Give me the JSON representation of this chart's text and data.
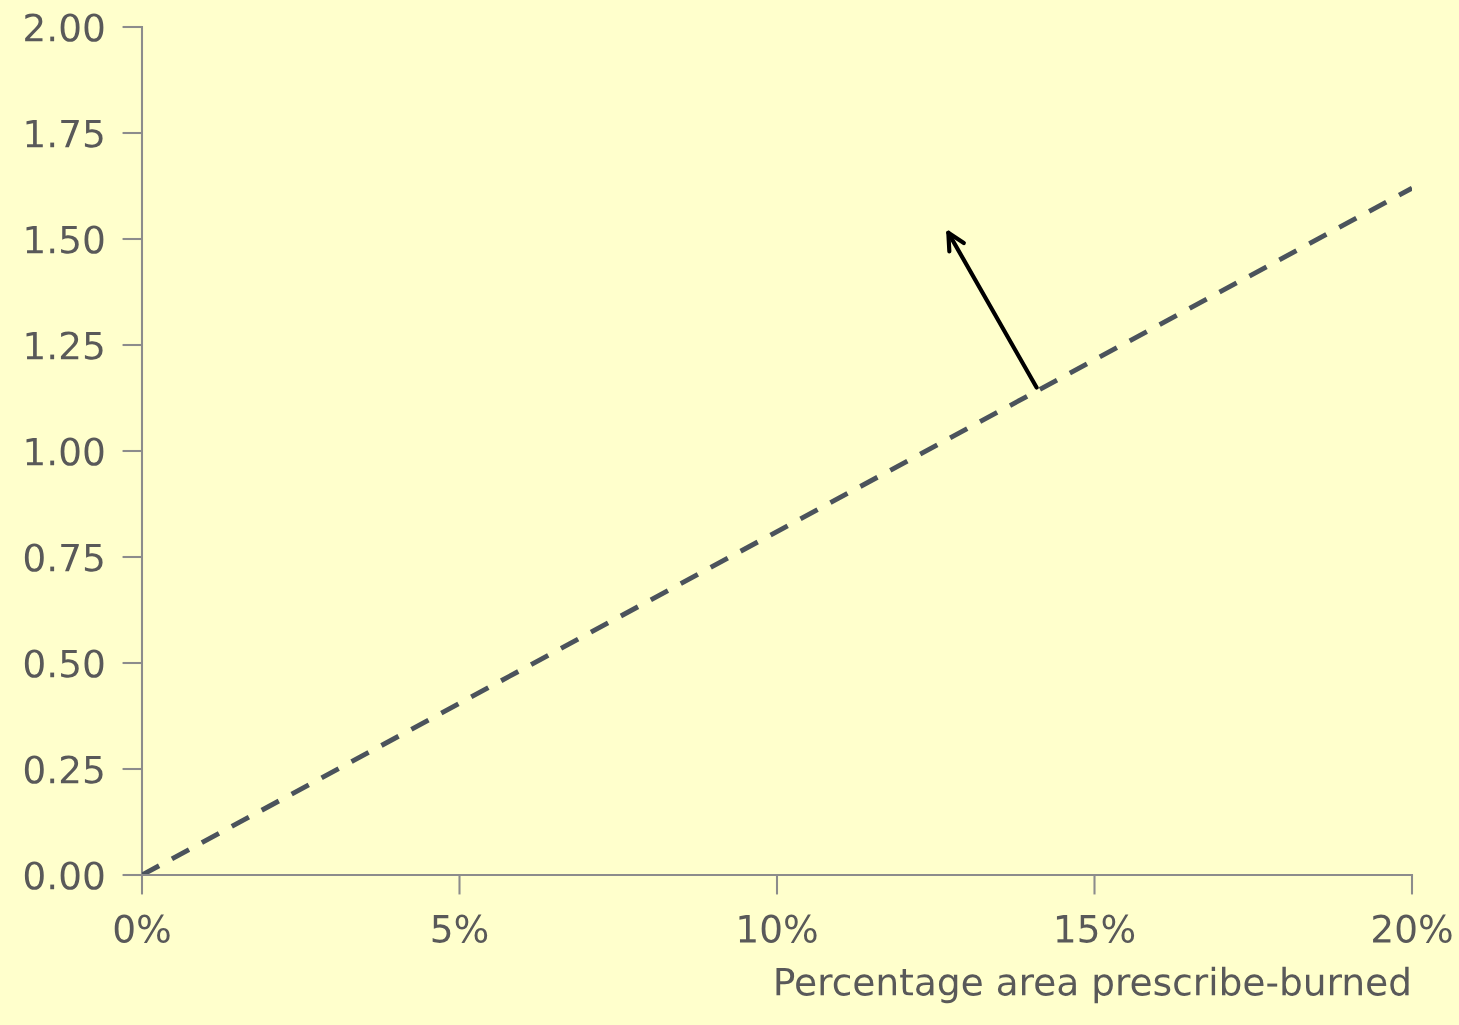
{
  "chart_data": {
    "type": "line",
    "xlabel": "Percentage area prescribe-burned",
    "x": [
      0,
      20
    ],
    "series": [
      {
        "color": "#4b535c",
        "values": [
          0,
          1.62
        ],
        "line_style": "dashed",
        "marker": "none"
      }
    ],
    "xlim": [
      0,
      20
    ],
    "xticks": [
      {
        "value": 0,
        "label": "0%"
      },
      {
        "value": 5,
        "label": "5%"
      },
      {
        "value": 10,
        "label": "10%"
      },
      {
        "value": 15,
        "label": "15%"
      },
      {
        "value": 20,
        "label": "20%"
      }
    ],
    "ylim": [
      0,
      2
    ],
    "yticks": [
      {
        "value": 0,
        "label": "0.00"
      },
      {
        "value": 0.25,
        "label": "0.25"
      },
      {
        "value": 0.5,
        "label": "0.50"
      },
      {
        "value": 0.75,
        "label": "0.75"
      },
      {
        "value": 1,
        "label": "1.00"
      },
      {
        "value": 1.25,
        "label": "1.25"
      },
      {
        "value": 1.5,
        "label": "1.50"
      },
      {
        "value": 1.75,
        "label": "1.75"
      },
      {
        "value": 2,
        "label": "2.00"
      }
    ],
    "grid": false,
    "legend": false
  }
}
